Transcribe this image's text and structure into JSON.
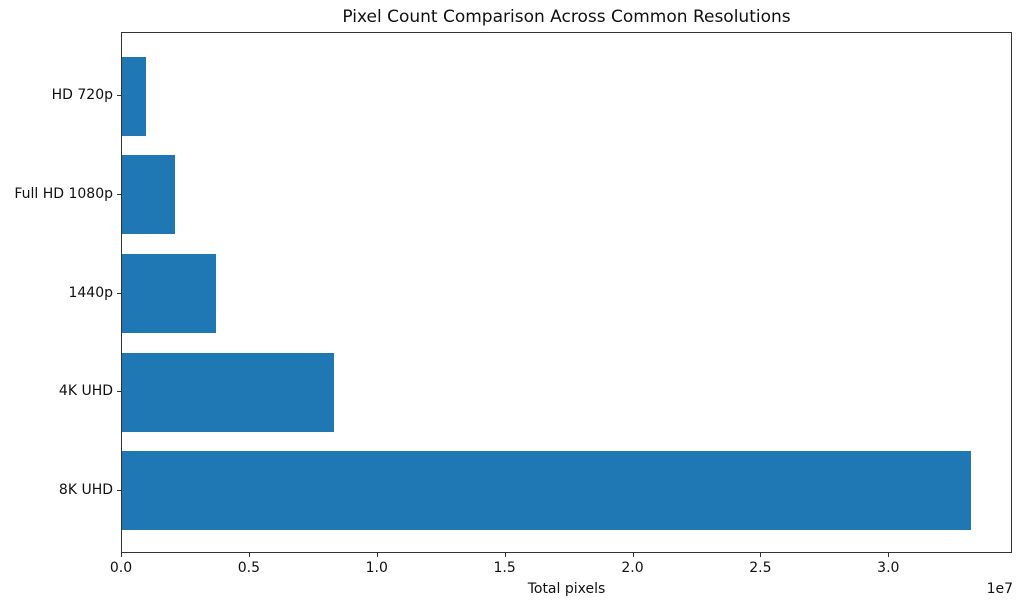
{
  "chart_data": {
    "type": "bar",
    "orientation": "horizontal",
    "title": "Pixel Count Comparison Across Common Resolutions",
    "categories": [
      "HD 720p",
      "Full HD 1080p",
      "1440p",
      "4K UHD",
      "8K UHD"
    ],
    "values": [
      921600,
      2073600,
      3686400,
      8294400,
      33177600
    ],
    "xlabel": "Total pixels",
    "ylabel": "",
    "x_tick_values": [
      0,
      5000000,
      10000000,
      15000000,
      20000000,
      25000000,
      30000000
    ],
    "x_tick_labels": [
      "0.0",
      "0.5",
      "1.0",
      "1.5",
      "2.0",
      "2.5",
      "3.0"
    ],
    "offset_label": "1e7",
    "xlim": [
      0,
      34836480
    ],
    "bar_color": "#1f77b4",
    "spine_color": "#333333",
    "text_color": "#111111",
    "grid": false,
    "legend": false
  }
}
